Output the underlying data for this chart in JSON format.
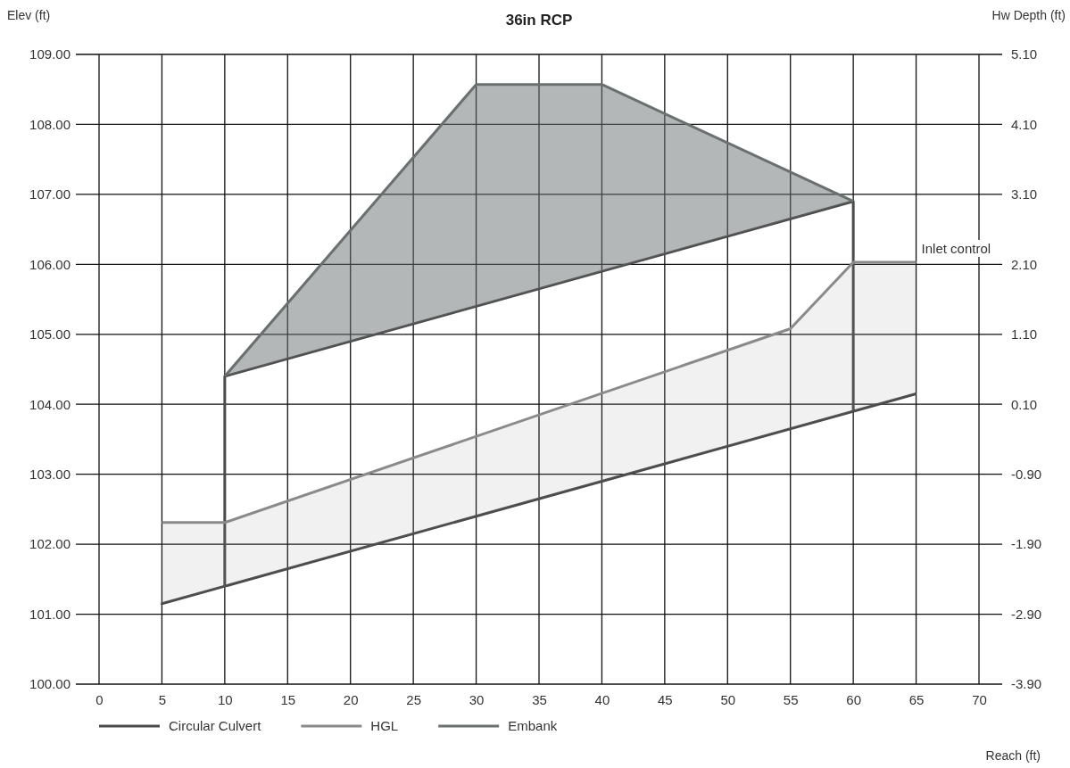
{
  "chart_data": {
    "type": "line",
    "title": "36in RCP",
    "xlabel": "Reach (ft)",
    "ylabel": "Elev (ft)",
    "y2label": "Hw Depth (ft)",
    "xlim": [
      0,
      70
    ],
    "xticks": [
      0,
      5,
      10,
      15,
      20,
      25,
      30,
      35,
      40,
      45,
      50,
      55,
      60,
      65,
      70
    ],
    "ylim": [
      100,
      109
    ],
    "yticks": [
      {
        "value": 100,
        "label": "100.00"
      },
      {
        "value": 101,
        "label": "101.00"
      },
      {
        "value": 102,
        "label": "102.00"
      },
      {
        "value": 103,
        "label": "103.00"
      },
      {
        "value": 104,
        "label": "104.00"
      },
      {
        "value": 105,
        "label": "105.00"
      },
      {
        "value": 106,
        "label": "106.00"
      },
      {
        "value": 107,
        "label": "107.00"
      },
      {
        "value": 108,
        "label": "108.00"
      },
      {
        "value": 109,
        "label": "109.00"
      }
    ],
    "y2lim": [
      -3.9,
      5.1
    ],
    "y2ticks": [
      {
        "value": -3.9,
        "label": "-3.90"
      },
      {
        "value": -2.9,
        "label": "-2.90"
      },
      {
        "value": -1.9,
        "label": "-1.90"
      },
      {
        "value": -0.9,
        "label": "-0.90"
      },
      {
        "value": 0.1,
        "label": "0.10"
      },
      {
        "value": 1.1,
        "label": "1.10"
      },
      {
        "value": 2.1,
        "label": "2.10"
      },
      {
        "value": 3.1,
        "label": "3.10"
      },
      {
        "value": 4.1,
        "label": "4.10"
      },
      {
        "value": 5.1,
        "label": "5.10"
      }
    ],
    "grid": true,
    "legend": "bottom",
    "marker": "none",
    "line_style": "solid",
    "series": [
      {
        "name": "Circular Culvert",
        "color": "#4a4a4a",
        "x": [
          65,
          5,
          10,
          10,
          60,
          60
        ],
        "values": [
          104.15,
          101.15,
          101.4,
          104.4,
          106.9,
          103.9
        ]
      },
      {
        "name": "HGL",
        "color": "#8a8a8a",
        "x": [
          5,
          10,
          55,
          60,
          65
        ],
        "values": [
          102.31,
          102.31,
          105.08,
          106.03,
          106.03
        ],
        "lower": [
          101.15,
          101.4,
          103.65,
          103.9,
          104.15
        ],
        "upper": [
          102.31,
          102.31,
          105.08,
          106.03,
          106.03
        ]
      },
      {
        "name": "Embank",
        "color": "#6a6f6f",
        "x": [
          10,
          30,
          40,
          60
        ],
        "values": [
          104.4,
          108.57,
          108.57,
          106.9
        ],
        "lower": [
          104.4,
          105.4,
          105.9,
          106.9
        ],
        "upper": [
          104.4,
          108.57,
          108.57,
          106.9
        ]
      }
    ],
    "annotations": [
      {
        "text": "Inlet control",
        "x": 65,
        "y": 106.03
      }
    ]
  }
}
